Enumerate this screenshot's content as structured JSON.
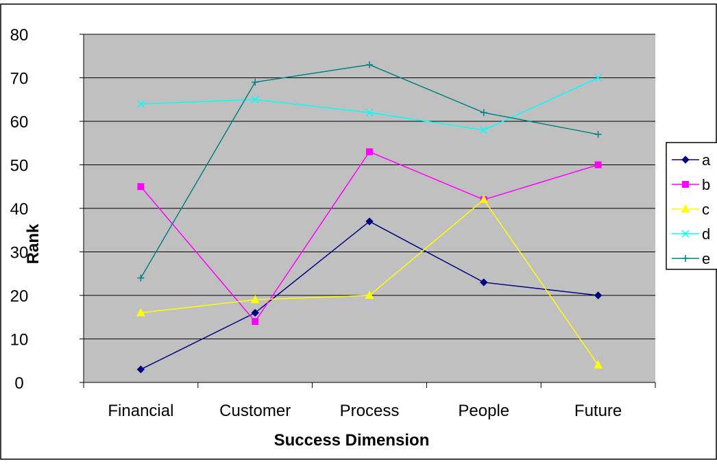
{
  "chart_data": {
    "type": "line",
    "title": "",
    "xlabel": "Success Dimension",
    "ylabel": "Rank",
    "categories": [
      "Financial",
      "Customer",
      "Process",
      "People",
      "Future"
    ],
    "ylim": [
      0,
      80
    ],
    "yticks": [
      0,
      10,
      20,
      30,
      40,
      50,
      60,
      70,
      80
    ],
    "grid": true,
    "legend": "right",
    "plot_background": "#c0c0c0",
    "series": [
      {
        "name": "a",
        "values": [
          3,
          16,
          37,
          23,
          20
        ],
        "color": "#000080",
        "marker": "diamond"
      },
      {
        "name": "b",
        "values": [
          45,
          14,
          53,
          42,
          50
        ],
        "color": "#ff00ff",
        "marker": "square"
      },
      {
        "name": "c",
        "values": [
          16,
          19,
          20,
          42,
          4
        ],
        "color": "#ffff00",
        "marker": "triangle"
      },
      {
        "name": "d",
        "values": [
          64,
          65,
          62,
          58,
          70
        ],
        "color": "#00ffff",
        "marker": "x"
      },
      {
        "name": "e",
        "values": [
          24,
          69,
          73,
          62,
          57
        ],
        "color": "#008080",
        "marker": "plus"
      }
    ]
  }
}
